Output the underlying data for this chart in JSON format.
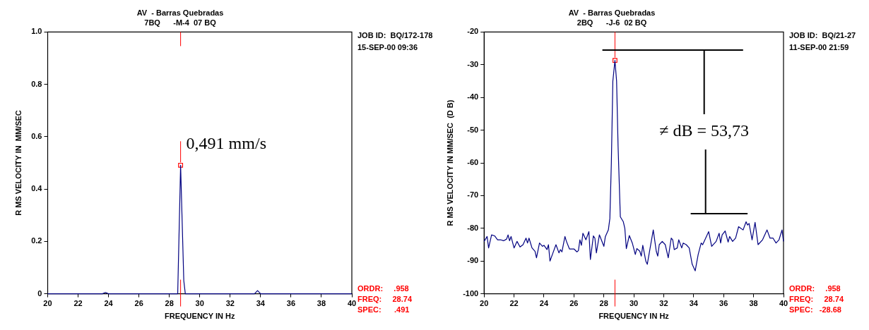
{
  "chart_data": [
    {
      "type": "line",
      "title": "AV  - Barras Quebradas",
      "subtitle": "7BQ      -M-4  07 BQ",
      "xlabel": "FREQUENCY IN Hz",
      "ylabel": "R MS VELOCITY IN  MM/SEC",
      "xlim": [
        20,
        40
      ],
      "xticks": [
        20,
        22,
        24,
        26,
        28,
        30,
        32,
        34,
        36,
        38,
        40
      ],
      "ylim": [
        0,
        1
      ],
      "yticks": [
        0,
        0.2,
        0.4,
        0.6,
        0.8,
        {
          "value": 1,
          "label": "1.0"
        }
      ],
      "grid": false,
      "legend": false,
      "series": [
        {
          "color": "#000080",
          "marker": "none",
          "x": [
            20,
            23.6,
            23.8,
            24,
            28.55,
            28.74,
            28.95,
            29.05,
            33.6,
            33.8,
            34,
            40
          ],
          "values": [
            0,
            0,
            0.005,
            0,
            0,
            0.491,
            0.05,
            0,
            0,
            0.012,
            0,
            0
          ]
        },
        {
          "type": "scatter",
          "color": "#ff0000",
          "marker": "square",
          "x": [
            28.74
          ],
          "values": [
            0.491
          ]
        }
      ],
      "ref_lines": [
        {
          "axis": "x",
          "value": 28.74,
          "color": "#ff0000"
        }
      ],
      "annotations": [
        "JOB ID:  BQ/172-178",
        "15-SEP-00 09:36",
        "ORDR:     .958",
        "FREQ:     28.74",
        "SPEC:      .491",
        {
          "text": "0,491 mm/s",
          "x": 28.74,
          "y": 0.491
        }
      ]
    },
    {
      "type": "line",
      "title": "AV  - Barras Quebradas",
      "subtitle": "2BQ      -J-6  02 BQ",
      "xlabel": "FREQUENCY IN Hz",
      "ylabel": "R MS VELOCITY IN MM/SEC  (D B)",
      "xlim": [
        20,
        40
      ],
      "xticks": [
        20,
        22,
        24,
        26,
        28,
        30,
        32,
        34,
        36,
        38,
        40
      ],
      "ylim": [
        -100,
        -20
      ],
      "yticks": [
        -100,
        -90,
        -80,
        -70,
        -60,
        -50,
        -40,
        -30,
        -20
      ],
      "grid": false,
      "legend": false,
      "series": [
        {
          "color": "#000080",
          "marker": "none",
          "x": [
            20.0,
            20.2,
            20.3,
            20.5,
            20.7,
            20.9,
            21.1,
            21.3,
            21.5,
            21.6,
            21.7,
            21.8,
            22.0,
            22.2,
            22.4,
            22.6,
            22.8,
            22.9,
            23.0,
            23.2,
            23.4,
            23.5,
            23.7,
            23.9,
            24.0,
            24.2,
            24.3,
            24.4,
            24.6,
            24.8,
            25.0,
            25.1,
            25.2,
            25.4,
            25.5,
            25.7,
            26.0,
            26.2,
            26.3,
            26.4,
            26.5,
            26.6,
            26.8,
            27.0,
            27.1,
            27.3,
            27.4,
            27.5,
            27.7,
            28.0,
            28.1,
            28.3,
            28.4,
            28.5,
            28.6,
            28.74,
            28.85,
            28.95,
            29.1,
            29.3,
            29.4,
            29.5,
            29.7,
            29.9,
            30.1,
            30.2,
            30.4,
            30.5,
            30.6,
            30.8,
            30.9,
            31.3,
            31.5,
            31.6,
            31.7,
            31.9,
            32.1,
            32.3,
            32.5,
            32.6,
            32.7,
            32.9,
            33.0,
            33.2,
            33.3,
            33.5,
            33.7,
            33.9,
            34.1,
            34.3,
            34.5,
            34.6,
            34.8,
            35.0,
            35.2,
            35.5,
            35.7,
            35.8,
            35.9,
            36.1,
            36.3,
            36.4,
            36.6,
            36.8,
            37.0,
            37.3,
            37.5,
            37.6,
            37.7,
            37.9,
            38.1,
            38.3,
            38.6,
            38.9,
            39.1,
            39.3,
            39.5,
            39.7,
            39.9,
            40.0
          ],
          "values": [
            -84,
            -82.5,
            -86,
            -82,
            -82.3,
            -83.5,
            -83.5,
            -83.8,
            -83.3,
            -82,
            -83.8,
            -82.5,
            -86,
            -84,
            -85.7,
            -85,
            -83,
            -84.5,
            -83,
            -86,
            -87,
            -89,
            -84.5,
            -85.5,
            -85.2,
            -86.5,
            -85,
            -90,
            -87.5,
            -85,
            -87.5,
            -86.5,
            -87.2,
            -82.5,
            -84,
            -86.3,
            -86.3,
            -87.2,
            -86.8,
            -83.5,
            -85.2,
            -81.5,
            -83.5,
            -81,
            -89.5,
            -82.3,
            -83,
            -87.5,
            -82,
            -85.5,
            -82.5,
            -80.5,
            -77,
            -60,
            -35,
            -28.68,
            -35,
            -55,
            -76.5,
            -78,
            -80,
            -86.2,
            -82.2,
            -84.5,
            -88,
            -86.2,
            -87,
            -88.5,
            -85.2,
            -90,
            -91,
            -80.5,
            -87,
            -88.5,
            -85,
            -84,
            -85,
            -89,
            -83,
            -83.5,
            -86.5,
            -86,
            -83.5,
            -86,
            -84.5,
            -85,
            -86,
            -91,
            -93,
            -88,
            -84.5,
            -85,
            -83,
            -81,
            -85.5,
            -84,
            -81.5,
            -84.5,
            -82,
            -80.8,
            -84.2,
            -82.5,
            -84,
            -83,
            -79.5,
            -80.5,
            -78,
            -79,
            -78.5,
            -83.5,
            -78.2,
            -85,
            -83.5,
            -80.5,
            -83,
            -83,
            -84.5,
            -83.5,
            -80.5,
            -84
          ]
        },
        {
          "type": "scatter",
          "color": "#ff0000",
          "marker": "square",
          "x": [
            28.74
          ],
          "values": [
            -28.68
          ]
        }
      ],
      "ref_lines": [
        {
          "axis": "x",
          "value": 28.74,
          "color": "#ff0000"
        },
        {
          "axis": "y",
          "value": -25.5,
          "color": "#000000"
        },
        {
          "axis": "y",
          "value": -75.5,
          "color": "#000000"
        }
      ],
      "annotations": [
        "JOB ID:  BQ/21-27",
        "11-SEP-00 21:59",
        "ORDR:     .958",
        "FREQ:     28.74",
        "SPEC:   -28.68",
        "≠ dB = 53,73"
      ]
    }
  ]
}
